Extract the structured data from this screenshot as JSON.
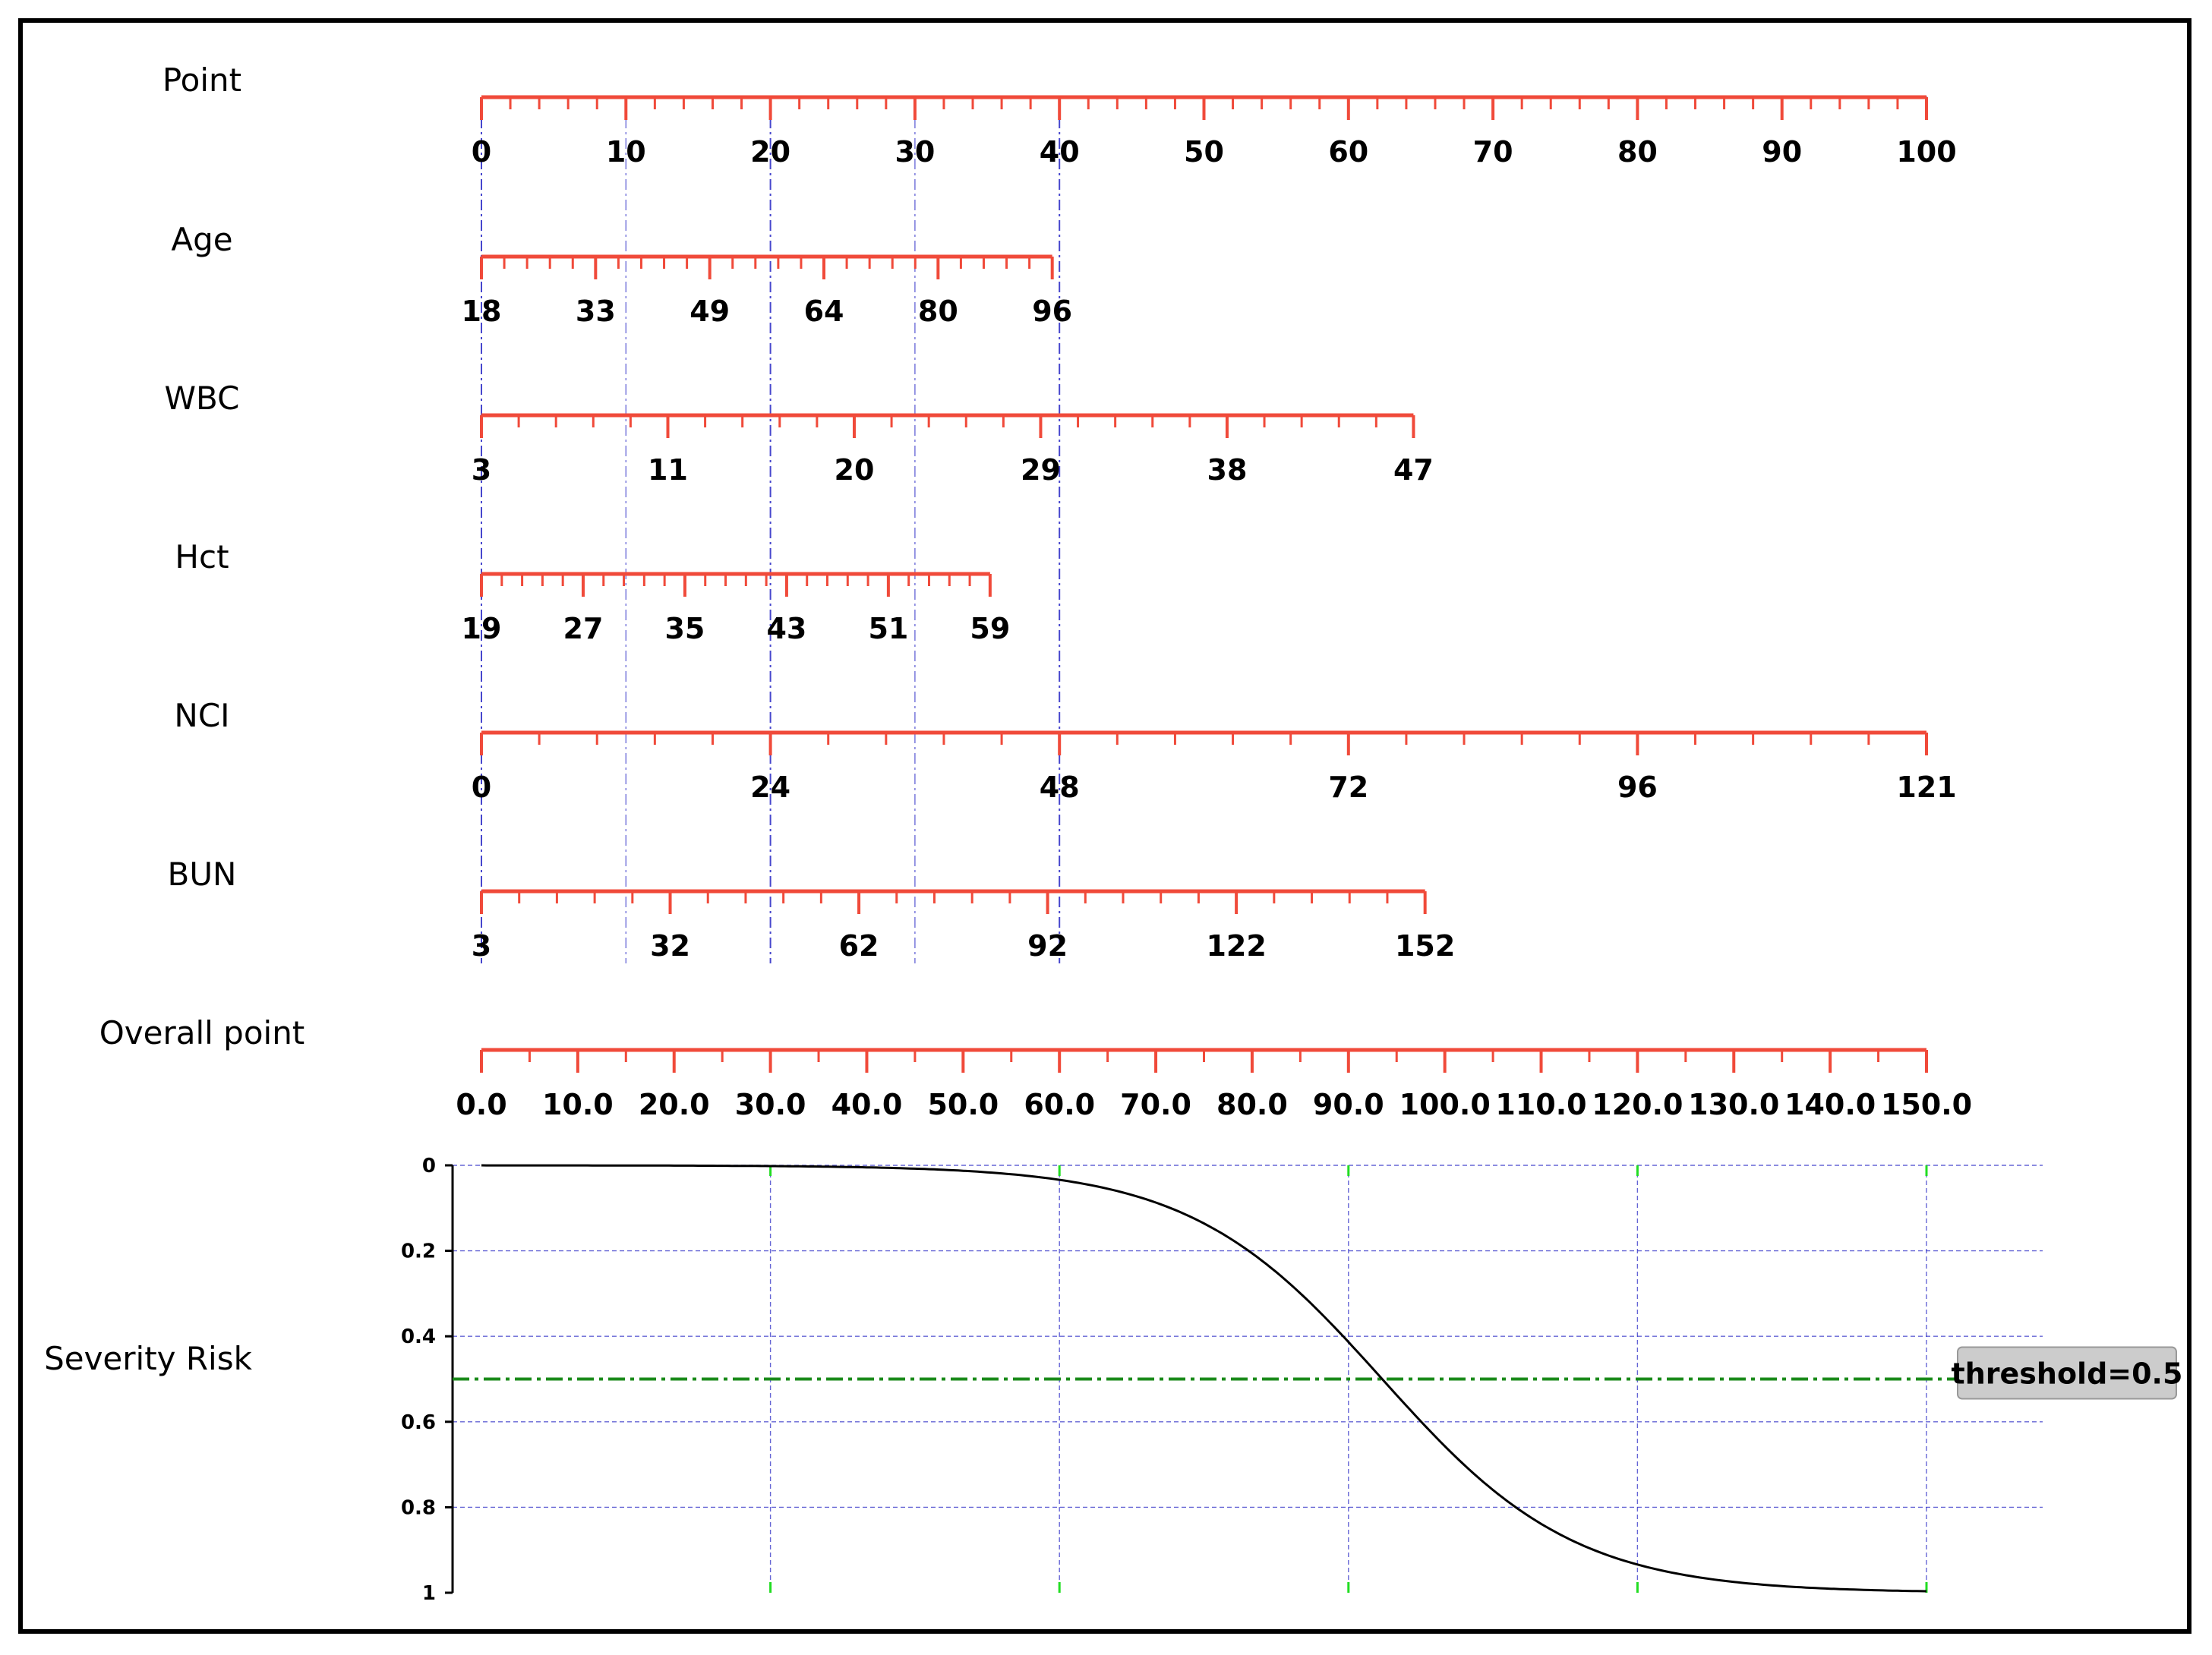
{
  "chart_data": {
    "type": "nomogram",
    "title": "",
    "colors": {
      "axis": "#f04a3a",
      "guide": "#3232c8",
      "curve": "#000000",
      "threshold": "#1a8a1a",
      "risk_minor_tick": "#22dd22",
      "threshold_box": "#cccccc"
    },
    "point_scale": {
      "name": "Point",
      "min": 0,
      "max": 100,
      "labels": [
        "0",
        "10",
        "20",
        "30",
        "40",
        "50",
        "60",
        "70",
        "80",
        "90",
        "100"
      ]
    },
    "variables": [
      {
        "name": "Age",
        "min": 18,
        "max": 96,
        "max_points": 39.5,
        "labels": [
          "18",
          "33",
          "49",
          "64",
          "80",
          "96"
        ]
      },
      {
        "name": "WBC",
        "min": 3,
        "max": 47,
        "max_points": 64.5,
        "labels": [
          "3",
          "11",
          "20",
          "29",
          "38",
          "47"
        ]
      },
      {
        "name": "Hct",
        "min": 19,
        "max": 59,
        "max_points": 35.2,
        "labels": [
          "19",
          "27",
          "35",
          "43",
          "51",
          "59"
        ]
      },
      {
        "name": "NCI",
        "min": 0,
        "max": 121,
        "max_points": 100,
        "labels": [
          "0",
          "24",
          "48",
          "72",
          "96",
          "121"
        ]
      },
      {
        "name": "BUN",
        "min": 3,
        "max": 152,
        "max_points": 65.3,
        "labels": [
          "3",
          "32",
          "62",
          "92",
          "122",
          "152"
        ]
      }
    ],
    "overall_point": {
      "name": "Overall point",
      "min": 0,
      "max": 150,
      "labels": [
        "0.0",
        "10.0",
        "20.0",
        "30.0",
        "40.0",
        "50.0",
        "60.0",
        "70.0",
        "80.0",
        "90.0",
        "100.0",
        "110.0",
        "120.0",
        "130.0",
        "140.0",
        "150.0"
      ]
    },
    "severity_risk": {
      "name": "Severity Risk",
      "ylim": [
        0,
        1
      ],
      "y_labels": [
        "0",
        "0.2",
        "0.4",
        "0.6",
        "0.8",
        "1"
      ],
      "curve_midpoint_points": 93.5,
      "curve_slope": 0.1,
      "threshold_value": 0.5,
      "threshold_label": "threshold=0.5",
      "grid": true
    }
  }
}
